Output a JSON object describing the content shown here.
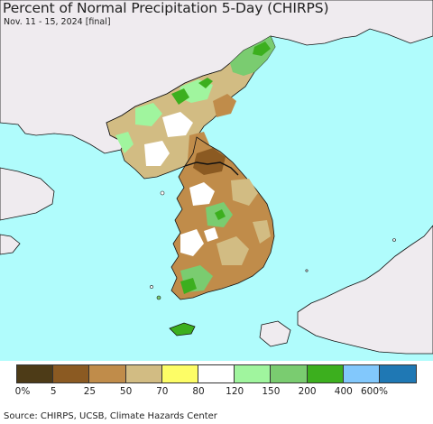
{
  "title": "Percent of Normal Precipitation 5-Day (CHIRPS)",
  "subtitle": "Nov. 11 - 15, 2024 [final]",
  "legend": {
    "colors": [
      "#4d3b17",
      "#8b5a22",
      "#c08c4a",
      "#d2bc83",
      "#fdfd66",
      "#ffffff",
      "#a0f59e",
      "#7acc70",
      "#3caf1e",
      "#82c8fc",
      "#1f78b4"
    ],
    "ticks": [
      "0%",
      "5",
      "25",
      "50",
      "70",
      "80",
      "120",
      "150",
      "200",
      "400",
      "600%"
    ]
  },
  "source": "Source: CHIRPS, UCSB, Climate Hazards Center",
  "map_colors": {
    "sea": "#b0fcfc",
    "foreign_land": "#efebef",
    "border": "#111111"
  }
}
